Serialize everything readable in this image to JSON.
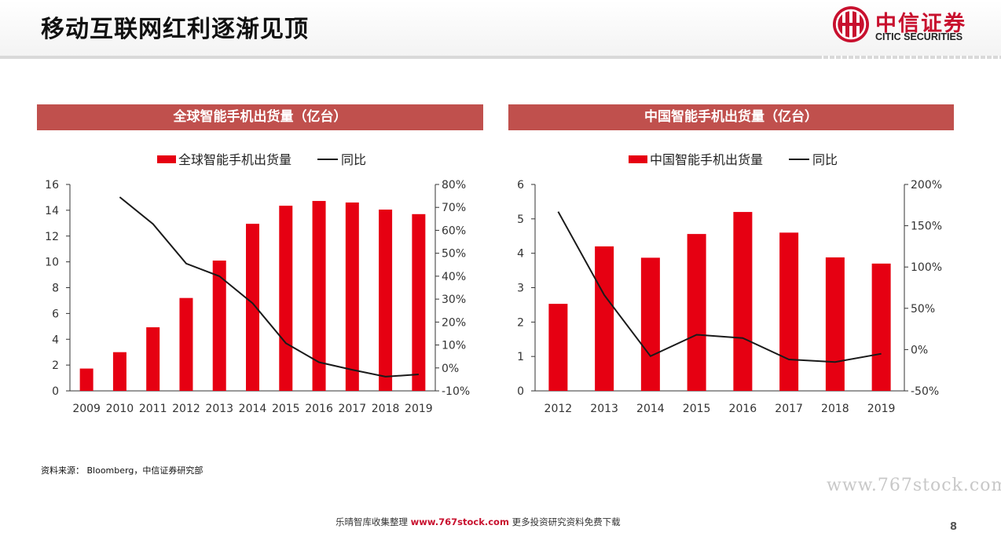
{
  "page": {
    "title": "移动互联网红利逐渐见顶",
    "source": "资料来源： Bloomberg，中信证券研究部",
    "watermark": "www.767stock.com",
    "footer_prefix": "乐晴智库收集整理",
    "footer_url": "www.767stock.com",
    "footer_suffix": "更多投资研究资料免费下载",
    "page_number": "8"
  },
  "logo": {
    "name_cn": "中信证券",
    "name_en": "CITIC SECURITIES",
    "color": "#c8102e"
  },
  "colors": {
    "bar": "#e60012",
    "line": "#1a1a1a",
    "title_band": "#c0504d",
    "axis": "#333333"
  },
  "chart_data": [
    {
      "type": "bar",
      "title": "全球智能手机出货量（亿台）",
      "legend": [
        "全球智能手机出货量",
        "同比"
      ],
      "legend_position": "top-center",
      "categories": [
        "2009",
        "2010",
        "2011",
        "2012",
        "2013",
        "2014",
        "2015",
        "2016",
        "2017",
        "2018",
        "2019"
      ],
      "series": [
        {
          "name": "全球智能手机出货量",
          "type": "bar",
          "axis": "left",
          "values": [
            1.73,
            3.0,
            4.93,
            7.2,
            10.1,
            12.95,
            14.35,
            14.72,
            14.6,
            14.05,
            13.7
          ]
        },
        {
          "name": "同比",
          "type": "line",
          "axis": "right",
          "values": [
            null,
            74.5,
            62.8,
            45.5,
            40.0,
            28.2,
            10.8,
            2.5,
            -0.8,
            -3.8,
            -2.8
          ]
        }
      ],
      "ylim": [
        0,
        16
      ],
      "yticks": [
        "0",
        "2",
        "4",
        "6",
        "8",
        "10",
        "12",
        "14",
        "16"
      ],
      "y2lim": [
        -10,
        80
      ],
      "y2ticks": [
        "-10%",
        "0%",
        "10%",
        "20%",
        "30%",
        "40%",
        "50%",
        "60%",
        "70%",
        "80%"
      ],
      "grid": false
    },
    {
      "type": "bar",
      "title": "中国智能手机出货量（亿台）",
      "legend": [
        "中国智能手机出货量",
        "同比"
      ],
      "legend_position": "top-center",
      "categories": [
        "2012",
        "2013",
        "2014",
        "2015",
        "2016",
        "2017",
        "2018",
        "2019"
      ],
      "series": [
        {
          "name": "中国智能手机出货量",
          "type": "bar",
          "axis": "left",
          "values": [
            2.53,
            4.2,
            3.87,
            4.56,
            5.2,
            4.6,
            3.88,
            3.7
          ]
        },
        {
          "name": "同比",
          "type": "line",
          "axis": "right",
          "values": [
            167,
            66,
            -8,
            18,
            14,
            -12,
            -15,
            -5
          ]
        }
      ],
      "ylim": [
        0,
        6
      ],
      "yticks": [
        "0",
        "1",
        "2",
        "3",
        "4",
        "5",
        "6"
      ],
      "y2lim": [
        -50,
        200
      ],
      "y2ticks": [
        "-50%",
        "0%",
        "50%",
        "100%",
        "150%",
        "200%"
      ],
      "grid": false
    }
  ]
}
